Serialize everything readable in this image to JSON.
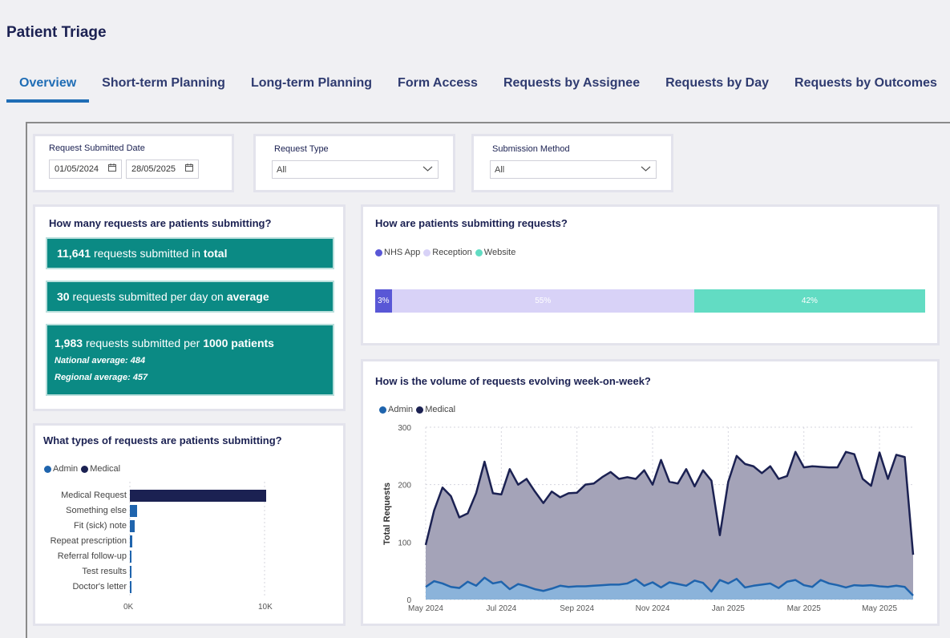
{
  "app": {
    "title": "Patient Triage"
  },
  "tabs": [
    {
      "label": "Overview",
      "active": true
    },
    {
      "label": "Short-term Planning",
      "active": false
    },
    {
      "label": "Long-term Planning",
      "active": false
    },
    {
      "label": "Form Access",
      "active": false
    },
    {
      "label": "Requests by Assignee",
      "active": false
    },
    {
      "label": "Requests by Day",
      "active": false
    },
    {
      "label": "Requests by Outcomes",
      "active": false
    }
  ],
  "filters": {
    "date": {
      "label": "Request Submitted Date",
      "from": "01/05/2024",
      "to": "28/05/2025",
      "icon": "calendar-icon"
    },
    "request_type": {
      "label": "Request Type",
      "value": "All"
    },
    "submission_method": {
      "label": "Submission Method",
      "value": "All"
    }
  },
  "kpis": {
    "title": "How many requests are patients submitting?",
    "total": {
      "value": "11,641",
      "text": "requests submitted in",
      "emph": "total"
    },
    "average": {
      "value": "30",
      "text": "requests submitted per day on",
      "emph": "average"
    },
    "per1000": {
      "value": "1,983",
      "text": "requests submitted per",
      "emph": "1000 patients",
      "national": "National average: 484",
      "regional": "Regional average: 457"
    }
  },
  "colors": {
    "accent": "#1f6db5",
    "kpi": "#0b8a84",
    "admin": "#1f64ad",
    "medical": "#1b2152",
    "nhs_app": "#5957d6",
    "reception": "#d8d2f7",
    "website": "#62dcc3"
  },
  "submission_chart": {
    "title": "How are patients submitting requests?",
    "legend": [
      "NHS App",
      "Reception",
      "Website"
    ],
    "chart_data": {
      "type": "bar",
      "stacked": true,
      "orientation": "horizontal",
      "categories": [
        "NHS App",
        "Reception",
        "Website"
      ],
      "values": [
        3,
        55,
        42
      ],
      "labels": [
        "3%",
        "55%",
        "42%"
      ]
    }
  },
  "types_chart": {
    "title": "What types of requests are patients submitting?",
    "legend": [
      "Admin",
      "Medical"
    ],
    "chart_data": {
      "type": "bar",
      "orientation": "horizontal",
      "categories": [
        "Medical Request",
        "Something else",
        "Fit (sick) note",
        "Repeat prescription",
        "Referral follow-up",
        "Test results",
        "Doctor's letter"
      ],
      "series": [
        {
          "name": "Medical",
          "values": [
            10100,
            0,
            0,
            0,
            0,
            0,
            0
          ]
        },
        {
          "name": "Admin",
          "values": [
            0,
            520,
            330,
            200,
            120,
            90,
            80
          ]
        }
      ],
      "xlim": [
        0,
        10000
      ],
      "xticks": [
        "0K",
        "10K"
      ],
      "grid": true
    }
  },
  "weekly_chart": {
    "title": "How is the volume of requests evolving week-on-week?",
    "legend": [
      "Admin",
      "Medical"
    ],
    "chart_data": {
      "type": "area",
      "ylabel": "Total Requests",
      "ylim": [
        0,
        300
      ],
      "yticks": [
        0,
        100,
        200,
        300
      ],
      "xticks": [
        "May 2024",
        "Jul 2024",
        "Sep 2024",
        "Nov 2024",
        "Jan 2025",
        "Mar 2025",
        "May 2025"
      ],
      "x_start": "2024-05-01",
      "series": [
        {
          "name": "Medical",
          "values": [
            95,
            155,
            195,
            180,
            143,
            150,
            185,
            240,
            185,
            183,
            227,
            200,
            210,
            188,
            168,
            188,
            178,
            185,
            186,
            200,
            202,
            213,
            222,
            210,
            213,
            210,
            225,
            200,
            243,
            205,
            202,
            227,
            197,
            225,
            207,
            112,
            205,
            250,
            236,
            232,
            220,
            232,
            210,
            215,
            257,
            230,
            232,
            231,
            230,
            230,
            257,
            253,
            210,
            198,
            256,
            210,
            252,
            248,
            78
          ]
        },
        {
          "name": "Admin",
          "values": [
            22,
            32,
            28,
            22,
            20,
            31,
            24,
            38,
            28,
            31,
            18,
            27,
            23,
            18,
            15,
            19,
            24,
            22,
            23,
            23,
            24,
            25,
            26,
            26,
            28,
            35,
            24,
            30,
            21,
            30,
            27,
            24,
            33,
            29,
            14,
            34,
            28,
            36,
            21,
            24,
            26,
            28,
            20,
            31,
            34,
            25,
            22,
            34,
            28,
            25,
            21,
            25,
            24,
            25,
            23,
            22,
            24,
            22,
            7
          ]
        }
      ]
    }
  }
}
